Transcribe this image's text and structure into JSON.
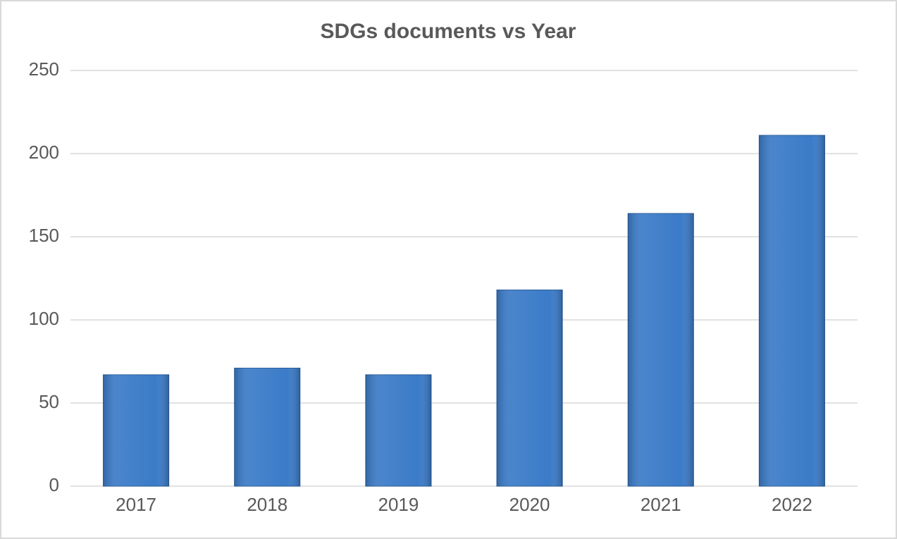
{
  "chart_data": {
    "type": "bar",
    "title": "SDGs documents vs Year",
    "categories": [
      "2017",
      "2018",
      "2019",
      "2020",
      "2021",
      "2022"
    ],
    "values": [
      67,
      71,
      67,
      118,
      164,
      211
    ],
    "color": "#3b7bc8",
    "ylim": [
      0,
      250
    ],
    "yticks": [
      0,
      50,
      100,
      150,
      200,
      250
    ],
    "grid": true
  }
}
